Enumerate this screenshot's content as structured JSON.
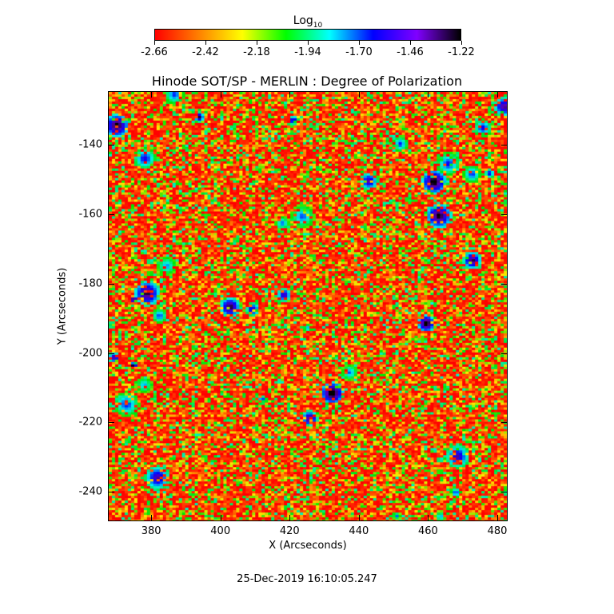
{
  "colorbar": {
    "title": "Log",
    "title_sub": "10",
    "ticks": [
      "-2.66",
      "-2.42",
      "-2.18",
      "-1.94",
      "-1.70",
      "-1.46",
      "-1.22"
    ],
    "gradient_colors": [
      "#ff0000",
      "#ff8000",
      "#ffff00",
      "#00ff00",
      "#00ffff",
      "#0000ff",
      "#8000ff",
      "#000000"
    ]
  },
  "plot": {
    "title": "Hinode SOT/SP - MERLIN : Degree of Polarization",
    "x_title": "X (Arcseconds)",
    "y_title": "Y (Arcseconds)",
    "x_range": [
      367.5,
      483
    ],
    "y_range": [
      -248.5,
      -124.5
    ],
    "x_ticks": [
      "380",
      "400",
      "420",
      "440",
      "460",
      "480"
    ],
    "y_ticks": [
      "-140",
      "-160",
      "-180",
      "-200",
      "-220",
      "-240"
    ],
    "x_tick_values": [
      380,
      400,
      420,
      440,
      460,
      480
    ],
    "y_tick_values": [
      -140,
      -160,
      -180,
      -200,
      -220,
      -240
    ]
  },
  "timestamp": "25-Dec-2019 16:10:05.247"
}
